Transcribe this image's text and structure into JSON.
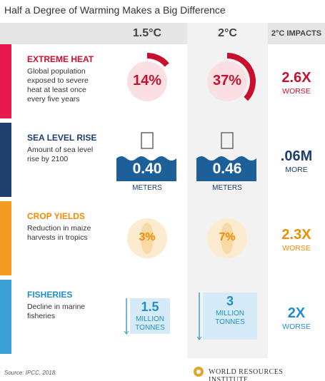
{
  "title": "Half a Degree of Warming Makes a Big Difference",
  "header": {
    "col1": "1.5°C",
    "col2": "2°C",
    "col3": "2°C IMPACTS"
  },
  "rows": [
    {
      "kind": "heat",
      "title": "EXTREME HEAT",
      "description": "Global population exposed to severe heat at least once every five years",
      "color": "#e8194f",
      "text_color": "#c8102e",
      "cells": [
        {
          "value": 14,
          "label": "14%"
        },
        {
          "value": 37,
          "label": "37%"
        }
      ],
      "impact": {
        "value": "2.6X",
        "unit": "WORSE"
      }
    },
    {
      "kind": "sea",
      "title": "SEA LEVEL RISE",
      "description": "Amount of sea level rise by 2100",
      "color": "#1d3f6e",
      "text_color": "#1d3f6e",
      "cells": [
        {
          "label": "0.40",
          "unit": "METERS"
        },
        {
          "label": "0.46",
          "unit": "METERS"
        }
      ],
      "impact": {
        "value": ".06M",
        "unit": "MORE"
      }
    },
    {
      "kind": "crop",
      "title": "CROP YIELDS",
      "description": "Reduction in maize harvests in tropics",
      "color": "#f39c1f",
      "text_color": "#f08c00",
      "cells": [
        {
          "label": "3%"
        },
        {
          "label": "7%"
        }
      ],
      "impact": {
        "value": "2.3X",
        "unit": "WORSE"
      }
    },
    {
      "kind": "fish",
      "title": "FISHERIES",
      "description": "Decline in marine fisheries",
      "color": "#3aa0d5",
      "text_color": "#1f8fcc",
      "cells": [
        {
          "label": "1.5",
          "unit": "MILLION TONNES"
        },
        {
          "label": "3",
          "unit": "MILLION TONNES"
        }
      ],
      "impact": {
        "value": "2X",
        "unit": "WORSE"
      }
    }
  ],
  "source": "Source: IPCC, 2018.",
  "logo": "WORLD RESOURCES INSTITUTE"
}
